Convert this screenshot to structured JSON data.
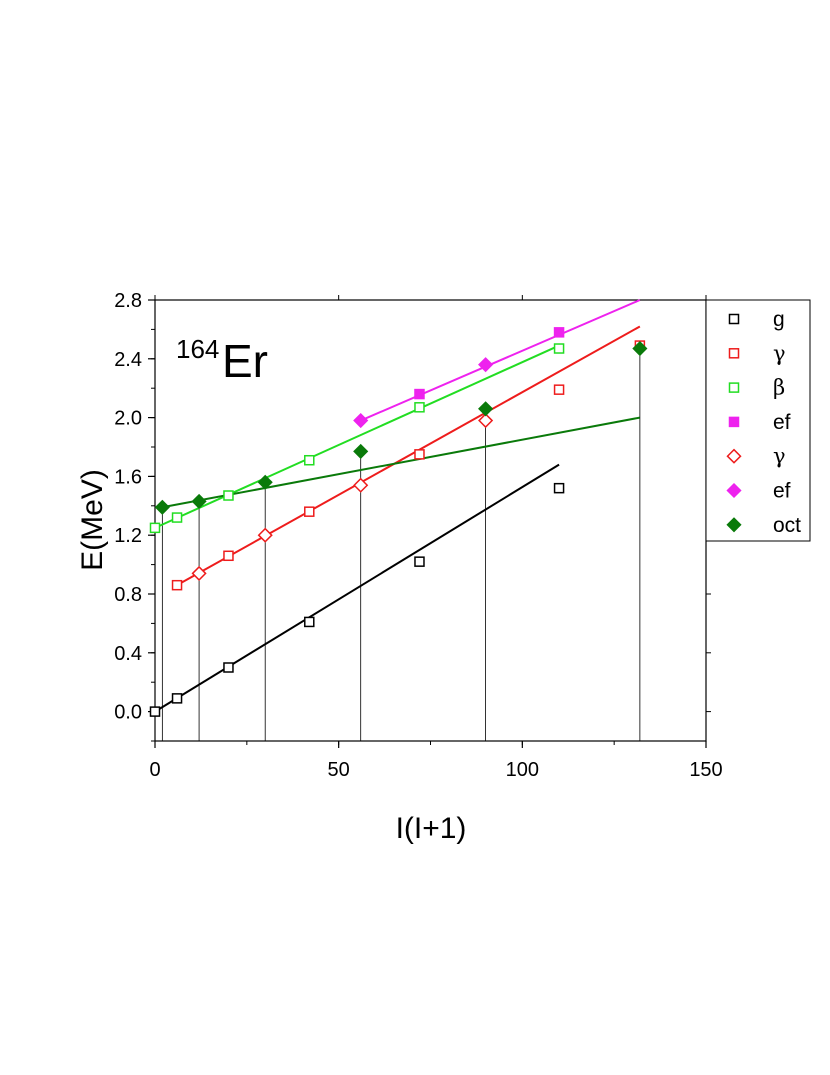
{
  "chart_data": {
    "type": "scatter",
    "title": "",
    "annotation": {
      "superscript": "164",
      "text": "Er"
    },
    "xlabel": "I(I+1)",
    "ylabel": "E(MeV)",
    "xlim": [
      0,
      150
    ],
    "ylim": [
      -0.2,
      2.8
    ],
    "x_ticks": [
      "0",
      "50",
      "100",
      "150"
    ],
    "y_ticks": [
      "0.0",
      "0.4",
      "0.8",
      "1.2",
      "1.6",
      "2.0",
      "2.4",
      "2.8"
    ],
    "grid": false,
    "legend_position": "right",
    "series": [
      {
        "name": "g",
        "marker": "square-open",
        "color": "#000000",
        "points": [
          [
            0,
            0.0
          ],
          [
            6,
            0.09
          ],
          [
            20,
            0.3
          ],
          [
            42,
            0.61
          ],
          [
            72,
            1.02
          ],
          [
            110,
            1.52
          ]
        ]
      },
      {
        "name": "γ",
        "marker": "square-open",
        "color": "#ee1c1c",
        "points": [
          [
            6,
            0.86
          ],
          [
            20,
            1.06
          ],
          [
            42,
            1.36
          ],
          [
            72,
            1.75
          ],
          [
            110,
            2.19
          ],
          [
            132,
            2.49
          ]
        ]
      },
      {
        "name": "β",
        "marker": "square-open",
        "color": "#22dd22",
        "points": [
          [
            0,
            1.25
          ],
          [
            6,
            1.32
          ],
          [
            20,
            1.47
          ],
          [
            42,
            1.71
          ],
          [
            72,
            2.07
          ],
          [
            110,
            2.47
          ]
        ]
      },
      {
        "name": "ef",
        "marker": "square-filled",
        "color": "#ee22ee",
        "points": [
          [
            72,
            2.16
          ],
          [
            110,
            2.58
          ]
        ]
      },
      {
        "name": "γ",
        "marker": "diamond-open",
        "color": "#ee1c1c",
        "points": [
          [
            12,
            0.94
          ],
          [
            30,
            1.2
          ],
          [
            56,
            1.54
          ],
          [
            90,
            1.98
          ]
        ]
      },
      {
        "name": "ef",
        "marker": "diamond-filled",
        "color": "#ee22ee",
        "points": [
          [
            56,
            1.98
          ],
          [
            90,
            2.36
          ]
        ]
      },
      {
        "name": "oct",
        "marker": "diamond-filled",
        "color": "#0a7a0a",
        "points": [
          [
            2,
            1.39
          ],
          [
            12,
            1.43
          ],
          [
            30,
            1.56
          ],
          [
            56,
            1.77
          ],
          [
            90,
            2.06
          ],
          [
            132,
            2.47
          ]
        ]
      }
    ],
    "fit_lines": [
      {
        "color": "#000000",
        "from": [
          0,
          0.0
        ],
        "to": [
          110,
          1.68
        ]
      },
      {
        "color": "#ee1c1c",
        "from": [
          6,
          0.86
        ],
        "to": [
          132,
          2.62
        ]
      },
      {
        "color": "#22dd22",
        "from": [
          0,
          1.25
        ],
        "to": [
          110,
          2.49
        ]
      },
      {
        "color": "#ee22ee",
        "from": [
          56,
          1.98
        ],
        "to": [
          132,
          2.8
        ]
      },
      {
        "color": "#0a7a0a",
        "from": [
          2,
          1.39
        ],
        "to": [
          132,
          2.0
        ]
      }
    ],
    "drop_lines_x": [
      2,
      12,
      30,
      56,
      90,
      132
    ]
  }
}
